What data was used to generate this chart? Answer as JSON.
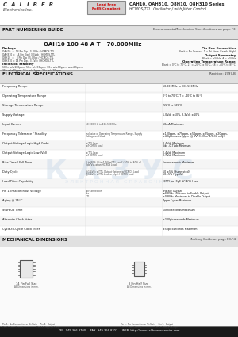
{
  "title_company": "C  A  L  I  B  E  R",
  "title_sub": "Electronics Inc.",
  "series_title": "OAH10, OAH310, O8H10, O8H310 Series",
  "series_sub": "HCMOS/TTL  Oscillator / with Jitter Control",
  "lead_free_line1": "Lead Free",
  "lead_free_line2": "RoHS Compliant",
  "section1_title": "PART NUMBERING GUIDE",
  "section1_right": "Environmental/Mechanical Specifications on page F3",
  "part_number_example": "OAH10 100 48 A T - 70.000MHz",
  "elec_spec_title": "ELECTRICAL SPECIFICATIONS",
  "elec_spec_right": "Revision: 1997-B",
  "mech_title": "MECHANICAL DIMENSIONS",
  "mech_right": "Marking Guide on page F3-F4",
  "footer": "TEL  949-366-8700     FAX  949-366-8707     WEB  http://www.caliberelectronics.com",
  "bg_color": "#ffffff",
  "section_bg": "#e0e0e0",
  "red_color": "#cc0000",
  "footer_bg": "#1a1a1a",
  "footer_text": "#ffffff",
  "lead_free_bg": "#d0d0d0",
  "lead_free_border": "#888888",
  "watermark_color": "#c8d8e8",
  "elec_rows": [
    [
      "Frequency Range",
      "",
      "50.000MHz to 333.500MHz"
    ],
    [
      "Operating Temperature Range",
      "",
      "0°C to 70°C; T = -40°C to 85°C"
    ],
    [
      "Storage Temperature Range",
      "",
      "-55°C to 125°C"
    ],
    [
      "Supply Voltage",
      "",
      "5.0Vdc ±10%, 3.3Vdc ±10%"
    ],
    [
      "Input Current",
      "50.000MHz to 166.500MHz",
      "50mA Maximum"
    ],
    [
      "Frequency Tolerance / Stability",
      "Inclusive of Operating Temperature Range, Supply\nVoltage and Load",
      "±100ppm, ±75ppm, ±50ppm, ±25ppm, ±20ppm,\n±4.6ppm as ±1ppm (@ 5V, 3.3V or 5/3.3V only)"
    ],
    [
      "Output Voltage Logic High (Voh)",
      "w/TTL Load\nw/HCMOS Load",
      "2.4Vdc Minimum\nVdd -0.7Vdc Minimum"
    ],
    [
      "Output Voltage Logic Low (Vol)",
      "w/TTL Load\nw/HCMOS Load",
      "0.4Vdc Maximum\n0.7Vdc Maximum"
    ],
    [
      "Rise Time / Fall Time",
      "0 to 80% (0 to 4.9V) w/TTL Load; (80% to 80% of\nVdd/Vss at an HCMOS Load)",
      "5nanoseconds Maximum"
    ],
    [
      "Duty Cycle",
      "@1.4Vdc w/TTL Output Options w/HCMOS Load\n@1.4Vdc w/TTL Load or Input HCMOS Load",
      "50 ±5% (Suggested)\n50±5% (Typical)"
    ],
    [
      "Load Drive Capability",
      "",
      "1FTTL or 15pF HCMOS Load"
    ],
    [
      "Pin 1 Tristate Input Voltage",
      "No Connection\nVss\nTTL",
      "Tristate Output\n≤0.8Vdc Minimum to Enable Output\n≥0.8Vdc Maximum to Disable Output"
    ],
    [
      "Aging @ 25°C",
      "",
      "4ppm / year Maximum"
    ],
    [
      "Start Up Time",
      "",
      "10milliseconds Maximum"
    ],
    [
      "Absolute Clock Jitter",
      "",
      "±200picoseconds Maximum"
    ],
    [
      "Cycle-to-Cycle Clock Jitter",
      "",
      "±50picoseconds Maximum"
    ]
  ]
}
